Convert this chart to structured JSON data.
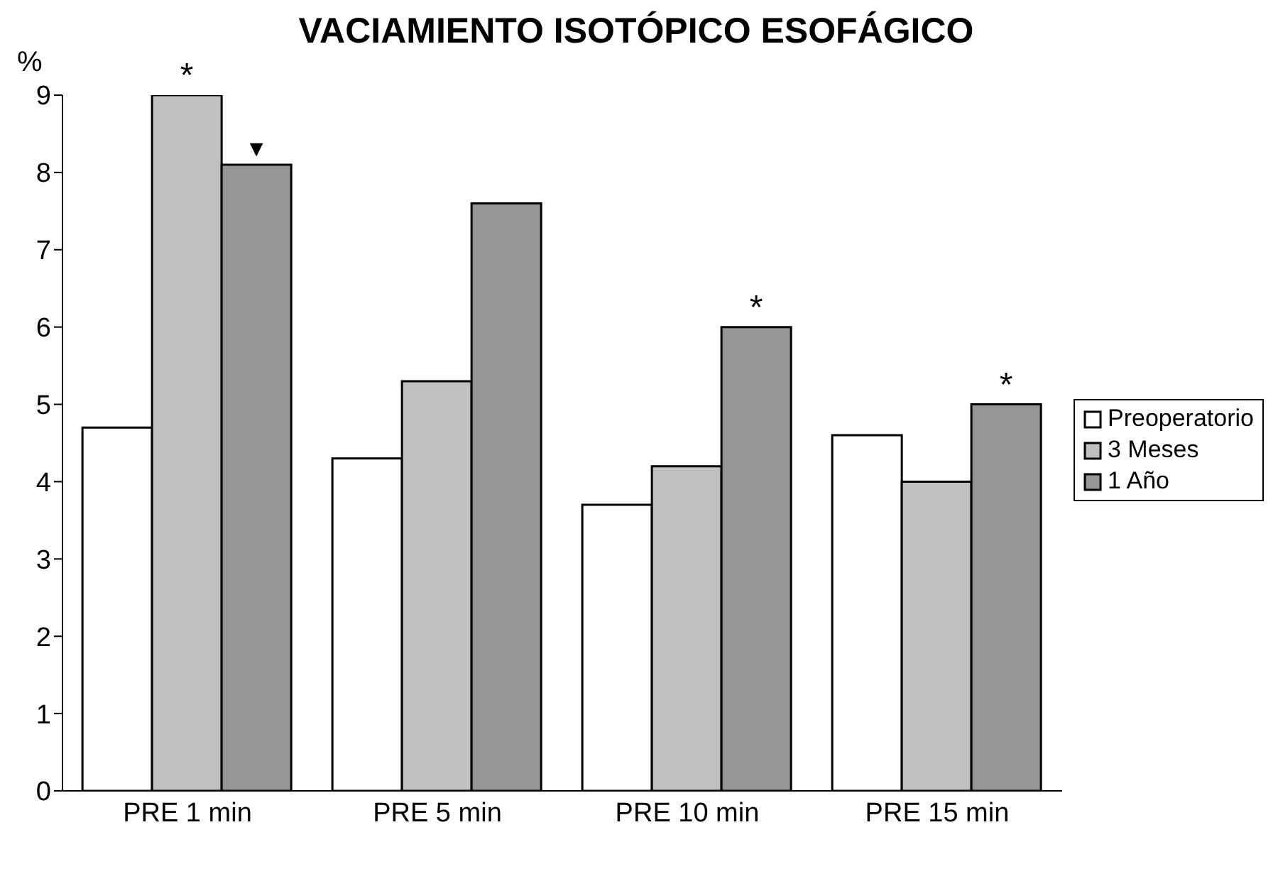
{
  "chart_data": {
    "type": "bar",
    "title": "VACIAMIENTO ISOTÓPICO ESOFÁGICO",
    "ylabel": "%",
    "categories": [
      "PRE 1 min",
      "PRE 5 min",
      "PRE 10 min",
      "PRE 15 min"
    ],
    "series": [
      {
        "name": "Preoperatorio",
        "color": "#ffffff",
        "values": [
          4.7,
          4.3,
          3.7,
          4.6
        ]
      },
      {
        "name": "3 Meses",
        "color": "#c0c0c0",
        "values": [
          9.0,
          5.3,
          4.2,
          4.0
        ]
      },
      {
        "name": "1 Año",
        "color": "#969696",
        "values": [
          8.1,
          7.6,
          6.0,
          5.0
        ]
      }
    ],
    "ylim": [
      0,
      9
    ],
    "yticks": [
      0,
      1,
      2,
      3,
      4,
      5,
      6,
      7,
      8,
      9
    ],
    "grid": false,
    "legend": "right",
    "annotations": [
      "*",
      "▼",
      "*",
      "*"
    ]
  }
}
